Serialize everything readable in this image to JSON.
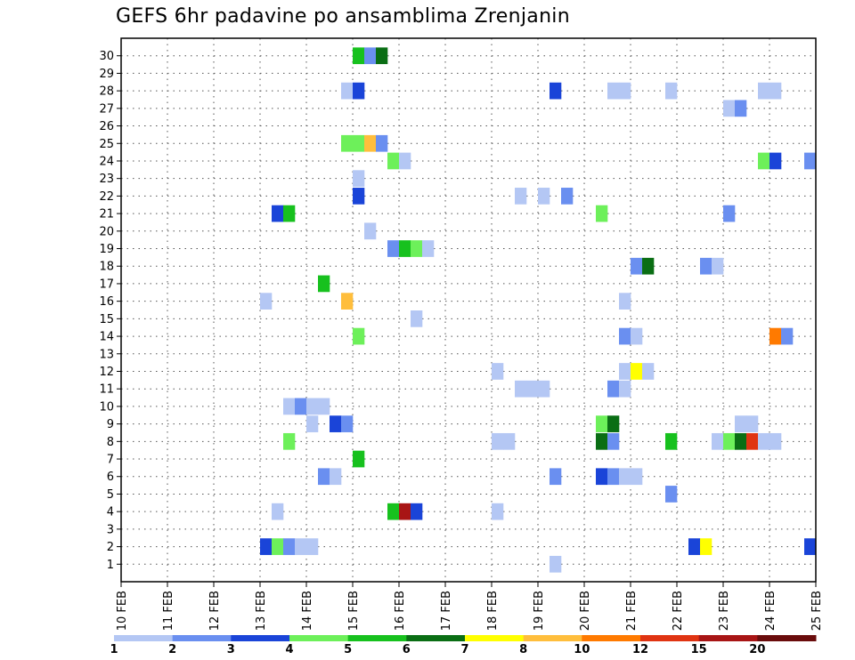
{
  "chart_data": {
    "type": "heatmap",
    "title": "GEFS 6hr padavine po ansamblima Zrenjanin",
    "xlabel": "",
    "ylabel": "",
    "x_tick_labels": [
      "10 FEB",
      "11 FEB",
      "12 FEB",
      "13 FEB",
      "14 FEB",
      "15 FEB",
      "16 FEB",
      "17 FEB",
      "18 FEB",
      "19 FEB",
      "20 FEB",
      "21 FEB",
      "22 FEB",
      "23 FEB",
      "24 FEB",
      "25 FEB"
    ],
    "y_tick_labels": [
      "1",
      "2",
      "3",
      "4",
      "5",
      "6",
      "7",
      "8",
      "9",
      "10",
      "11",
      "12",
      "13",
      "14",
      "15",
      "16",
      "17",
      "18",
      "19",
      "20",
      "21",
      "22",
      "23",
      "24",
      "25",
      "26",
      "27",
      "28",
      "29",
      "30"
    ],
    "x_unit": "days since 10 FEB",
    "xlim": [
      0,
      15
    ],
    "ylim": [
      0,
      31
    ],
    "grid": true,
    "colorbar": {
      "labels": [
        "1",
        "2",
        "3",
        "4",
        "5",
        "6",
        "7",
        "8",
        "10",
        "12",
        "15",
        "20"
      ],
      "colors": [
        "#b4c7f4",
        "#6a8ff0",
        "#1a44d8",
        "#6df05a",
        "#17c11e",
        "#0a6e14",
        "#ffff00",
        "#ffbe3c",
        "#ff7a00",
        "#e03412",
        "#a81515",
        "#6a0c0c"
      ]
    },
    "cells": [
      {
        "member": 1,
        "t": 9.25,
        "v": 1
      },
      {
        "member": 2,
        "t": 3.0,
        "v": 3
      },
      {
        "member": 2,
        "t": 3.25,
        "v": 4
      },
      {
        "member": 2,
        "t": 3.5,
        "v": 2
      },
      {
        "member": 2,
        "t": 3.75,
        "v": 1
      },
      {
        "member": 2,
        "t": 4.0,
        "v": 1
      },
      {
        "member": 2,
        "t": 12.25,
        "v": 3
      },
      {
        "member": 2,
        "t": 12.5,
        "v": 7
      },
      {
        "member": 2,
        "t": 14.75,
        "v": 3
      },
      {
        "member": 4,
        "t": 3.25,
        "v": 1
      },
      {
        "member": 4,
        "t": 5.75,
        "v": 5
      },
      {
        "member": 4,
        "t": 6.0,
        "v": 15
      },
      {
        "member": 4,
        "t": 6.25,
        "v": 3
      },
      {
        "member": 4,
        "t": 8.0,
        "v": 1
      },
      {
        "member": 5,
        "t": 11.75,
        "v": 2
      },
      {
        "member": 6,
        "t": 4.25,
        "v": 2
      },
      {
        "member": 6,
        "t": 4.5,
        "v": 1
      },
      {
        "member": 6,
        "t": 9.25,
        "v": 2
      },
      {
        "member": 6,
        "t": 10.25,
        "v": 3
      },
      {
        "member": 6,
        "t": 10.5,
        "v": 2
      },
      {
        "member": 6,
        "t": 10.75,
        "v": 1
      },
      {
        "member": 6,
        "t": 11.0,
        "v": 1
      },
      {
        "member": 7,
        "t": 5.0,
        "v": 5
      },
      {
        "member": 8,
        "t": 3.5,
        "v": 4
      },
      {
        "member": 8,
        "t": 8.0,
        "v": 1
      },
      {
        "member": 8,
        "t": 8.25,
        "v": 1
      },
      {
        "member": 8,
        "t": 10.25,
        "v": 6
      },
      {
        "member": 8,
        "t": 10.5,
        "v": 2
      },
      {
        "member": 8,
        "t": 11.75,
        "v": 5
      },
      {
        "member": 8,
        "t": 12.75,
        "v": 1
      },
      {
        "member": 8,
        "t": 13.0,
        "v": 4
      },
      {
        "member": 8,
        "t": 13.25,
        "v": 6
      },
      {
        "member": 8,
        "t": 13.5,
        "v": 12
      },
      {
        "member": 8,
        "t": 13.75,
        "v": 1
      },
      {
        "member": 8,
        "t": 14.0,
        "v": 1
      },
      {
        "member": 9,
        "t": 4.0,
        "v": 1
      },
      {
        "member": 9,
        "t": 4.5,
        "v": 3
      },
      {
        "member": 9,
        "t": 4.75,
        "v": 2
      },
      {
        "member": 9,
        "t": 10.25,
        "v": 4
      },
      {
        "member": 9,
        "t": 10.5,
        "v": 6
      },
      {
        "member": 9,
        "t": 13.25,
        "v": 1
      },
      {
        "member": 9,
        "t": 13.5,
        "v": 1
      },
      {
        "member": 10,
        "t": 3.5,
        "v": 1
      },
      {
        "member": 10,
        "t": 3.75,
        "v": 2
      },
      {
        "member": 10,
        "t": 4.0,
        "v": 1
      },
      {
        "member": 10,
        "t": 4.25,
        "v": 1
      },
      {
        "member": 11,
        "t": 8.5,
        "v": 1
      },
      {
        "member": 11,
        "t": 8.75,
        "v": 1
      },
      {
        "member": 11,
        "t": 9.0,
        "v": 1
      },
      {
        "member": 11,
        "t": 10.5,
        "v": 2
      },
      {
        "member": 11,
        "t": 10.75,
        "v": 1
      },
      {
        "member": 12,
        "t": 8.0,
        "v": 1
      },
      {
        "member": 12,
        "t": 10.75,
        "v": 1
      },
      {
        "member": 12,
        "t": 11.0,
        "v": 7
      },
      {
        "member": 12,
        "t": 11.25,
        "v": 1
      },
      {
        "member": 14,
        "t": 5.0,
        "v": 4
      },
      {
        "member": 14,
        "t": 10.75,
        "v": 2
      },
      {
        "member": 14,
        "t": 11.0,
        "v": 1
      },
      {
        "member": 14,
        "t": 14.0,
        "v": 10
      },
      {
        "member": 14,
        "t": 14.25,
        "v": 2
      },
      {
        "member": 15,
        "t": 6.25,
        "v": 1
      },
      {
        "member": 16,
        "t": 3.0,
        "v": 1
      },
      {
        "member": 16,
        "t": 4.75,
        "v": 8
      },
      {
        "member": 16,
        "t": 10.75,
        "v": 1
      },
      {
        "member": 17,
        "t": 4.25,
        "v": 5
      },
      {
        "member": 18,
        "t": 11.0,
        "v": 2
      },
      {
        "member": 18,
        "t": 11.25,
        "v": 6
      },
      {
        "member": 18,
        "t": 12.5,
        "v": 2
      },
      {
        "member": 18,
        "t": 12.75,
        "v": 1
      },
      {
        "member": 19,
        "t": 5.75,
        "v": 2
      },
      {
        "member": 19,
        "t": 6.0,
        "v": 5
      },
      {
        "member": 19,
        "t": 6.25,
        "v": 4
      },
      {
        "member": 19,
        "t": 6.5,
        "v": 1
      },
      {
        "member": 20,
        "t": 5.25,
        "v": 1
      },
      {
        "member": 21,
        "t": 3.25,
        "v": 3
      },
      {
        "member": 21,
        "t": 3.5,
        "v": 5
      },
      {
        "member": 21,
        "t": 10.25,
        "v": 4
      },
      {
        "member": 21,
        "t": 13.0,
        "v": 2
      },
      {
        "member": 22,
        "t": 5.0,
        "v": 3
      },
      {
        "member": 22,
        "t": 8.5,
        "v": 1
      },
      {
        "member": 22,
        "t": 9.0,
        "v": 1
      },
      {
        "member": 22,
        "t": 9.5,
        "v": 2
      },
      {
        "member": 23,
        "t": 5.0,
        "v": 1
      },
      {
        "member": 24,
        "t": 5.75,
        "v": 4
      },
      {
        "member": 24,
        "t": 6.0,
        "v": 1
      },
      {
        "member": 24,
        "t": 13.75,
        "v": 4
      },
      {
        "member": 24,
        "t": 14.0,
        "v": 3
      },
      {
        "member": 24,
        "t": 14.75,
        "v": 2
      },
      {
        "member": 25,
        "t": 4.75,
        "v": 4
      },
      {
        "member": 25,
        "t": 5.0,
        "v": 4
      },
      {
        "member": 25,
        "t": 5.25,
        "v": 8
      },
      {
        "member": 25,
        "t": 5.5,
        "v": 2
      },
      {
        "member": 27,
        "t": 13.0,
        "v": 1
      },
      {
        "member": 27,
        "t": 13.25,
        "v": 2
      },
      {
        "member": 28,
        "t": 4.75,
        "v": 1
      },
      {
        "member": 28,
        "t": 5.0,
        "v": 3
      },
      {
        "member": 28,
        "t": 9.25,
        "v": 3
      },
      {
        "member": 28,
        "t": 10.5,
        "v": 1
      },
      {
        "member": 28,
        "t": 10.75,
        "v": 1
      },
      {
        "member": 28,
        "t": 11.75,
        "v": 1
      },
      {
        "member": 28,
        "t": 13.75,
        "v": 1
      },
      {
        "member": 28,
        "t": 14.0,
        "v": 1
      },
      {
        "member": 30,
        "t": 5.0,
        "v": 5
      },
      {
        "member": 30,
        "t": 5.25,
        "v": 2
      },
      {
        "member": 30,
        "t": 5.5,
        "v": 6
      }
    ]
  }
}
